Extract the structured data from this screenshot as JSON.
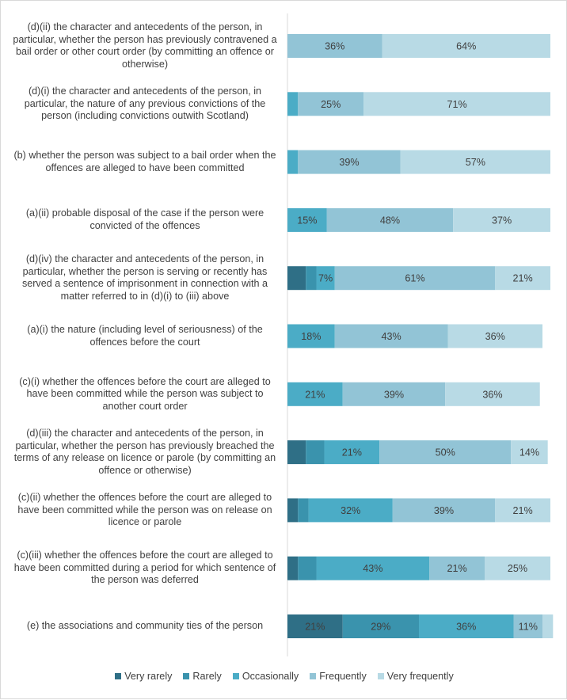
{
  "chart_data": {
    "type": "bar",
    "orientation": "horizontal",
    "stacked": true,
    "percent": true,
    "xlim": [
      0,
      100
    ],
    "grid": false,
    "legend_position": "bottom",
    "categories": [
      "(d)(ii) the character and antecedents of the person, in particular, whether the person has previously contravened a bail order or other court order (by committing an offence or otherwise)",
      "(d)(i) the character and antecedents of the person, in particular, the nature of any previous convictions of the person (including convictions outwith Scotland)",
      "(b) whether the person was subject to a bail order when the offences are alleged to have been committed",
      "(a)(ii) probable disposal of the case if the person were convicted of the offences",
      "(d)(iv) the character and antecedents of the person, in particular, whether the person is serving or recently has served a sentence of imprisonment in connection with a matter referred to in (d)(i) to (iii) above",
      "(a)(i) the nature (including level of seriousness) of the offences before the court",
      "(c)(i) whether the offences before the court are alleged to have been committed while the person was subject to another court order",
      "(d)(iii) the character and antecedents of the person, in particular, whether the person has previously breached the terms of any release on licence or parole (by committing an offence or otherwise)",
      "(c)(ii) whether the offences before the court are alleged to have been committed while the person was on release on licence or parole",
      "(c)(iii) whether the offences before the court are alleged to have been committed during a period for which sentence of the person was deferred",
      "(e) the associations and community ties of the person"
    ],
    "series": [
      {
        "name": "Very rarely",
        "color": "#2f6f86",
        "values": [
          0,
          0,
          0,
          0,
          7,
          0,
          0,
          7,
          4,
          4,
          21
        ]
      },
      {
        "name": "Rarely",
        "color": "#3a93ad",
        "values": [
          0,
          0,
          0,
          0,
          4,
          0,
          0,
          7,
          4,
          7,
          29
        ]
      },
      {
        "name": "Occasionally",
        "color": "#4bacc6",
        "values": [
          0,
          4,
          4,
          15,
          7,
          18,
          21,
          21,
          32,
          43,
          36
        ]
      },
      {
        "name": "Frequently",
        "color": "#92c4d6",
        "values": [
          36,
          25,
          39,
          48,
          61,
          43,
          39,
          50,
          39,
          21,
          11
        ]
      },
      {
        "name": "Very frequently",
        "color": "#b8dae5",
        "values": [
          64,
          71,
          57,
          37,
          21,
          36,
          36,
          14,
          21,
          25,
          4
        ]
      }
    ],
    "data_labels": [
      [
        "",
        "",
        "",
        "36%",
        "64%"
      ],
      [
        "",
        "",
        "",
        "25%",
        "71%"
      ],
      [
        "",
        "",
        "",
        "39%",
        "57%"
      ],
      [
        "",
        "",
        "15%",
        "48%",
        "37%"
      ],
      [
        "",
        "",
        "7%",
        "61%",
        "21%"
      ],
      [
        "",
        "",
        "18%",
        "43%",
        "36%"
      ],
      [
        "",
        "",
        "21%",
        "39%",
        "36%"
      ],
      [
        "",
        "",
        "21%",
        "50%",
        "14%"
      ],
      [
        "",
        "",
        "32%",
        "39%",
        "21%"
      ],
      [
        "",
        "",
        "43%",
        "21%",
        "25%"
      ],
      [
        "21%",
        "29%",
        "36%",
        "11%",
        ""
      ]
    ]
  }
}
